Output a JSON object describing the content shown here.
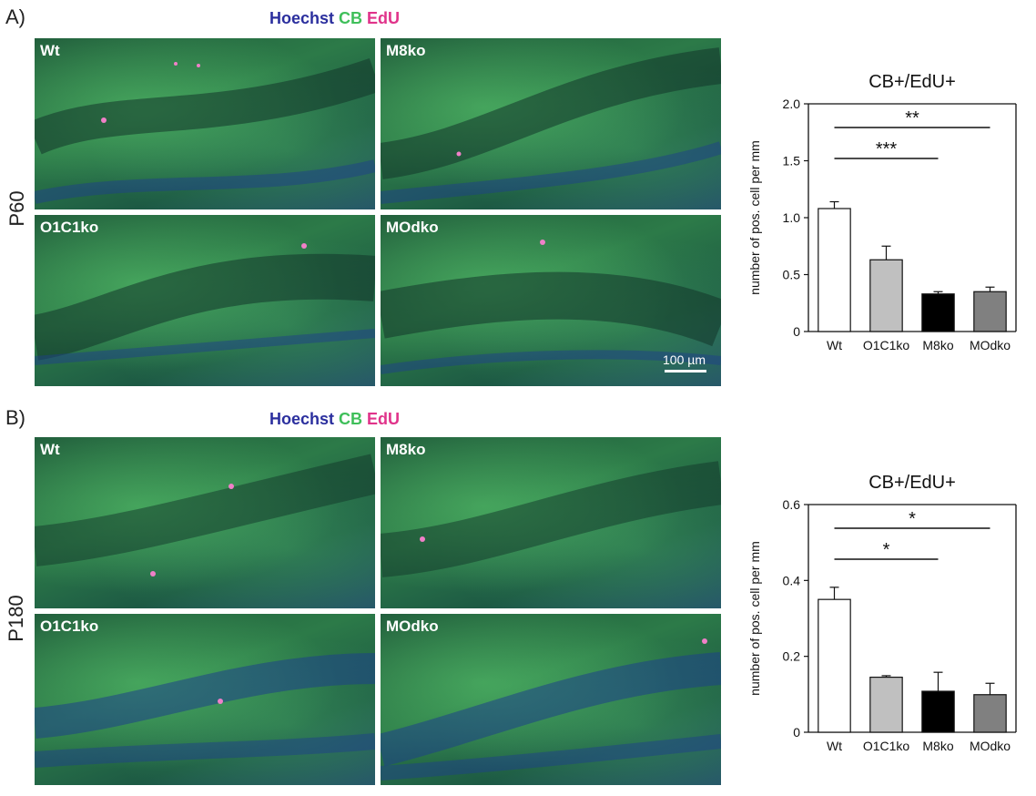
{
  "panels": [
    {
      "letter": "A)",
      "stain": {
        "hoechst": "Hoechst",
        "cb": "CB",
        "edu": "EdU"
      },
      "age": "P60",
      "images": [
        {
          "label": "Wt"
        },
        {
          "label": "M8ko"
        },
        {
          "label": "O1C1ko"
        },
        {
          "label": "MOdko"
        }
      ],
      "scale_bar": "100 µm"
    },
    {
      "letter": "B)",
      "stain": {
        "hoechst": "Hoechst",
        "cb": "CB",
        "edu": "EdU"
      },
      "age": "P180",
      "images": [
        {
          "label": "Wt"
        },
        {
          "label": "M8ko"
        },
        {
          "label": "O1C1ko"
        },
        {
          "label": "MOdko"
        }
      ]
    }
  ],
  "chart_data": [
    {
      "type": "bar",
      "title": "CB+/EdU+",
      "ylabel": "number of pos. cell per mm",
      "categories": [
        "Wt",
        "O1C1ko",
        "M8ko",
        "MOdko"
      ],
      "values": [
        1.08,
        0.63,
        0.33,
        0.35
      ],
      "errors": [
        0.06,
        0.12,
        0.02,
        0.04
      ],
      "colors": [
        "#ffffff",
        "#c0c0c0",
        "#000000",
        "#808080"
      ],
      "ylim": [
        0,
        2.0
      ],
      "yticks": [
        "0",
        "0.5",
        "1.0",
        "1.5",
        "2.0"
      ],
      "ytick_values": [
        0,
        0.5,
        1.0,
        1.5,
        2.0
      ],
      "significance": [
        {
          "from": 0,
          "to": 2,
          "label": "***"
        },
        {
          "from": 0,
          "to": 3,
          "label": "**"
        }
      ]
    },
    {
      "type": "bar",
      "title": "CB+/EdU+",
      "ylabel": "number of pos. cell per mm",
      "categories": [
        "Wt",
        "O1C1ko",
        "M8ko",
        "MOdko"
      ],
      "values": [
        0.35,
        0.145,
        0.108,
        0.099
      ],
      "errors": [
        0.032,
        0.004,
        0.05,
        0.03
      ],
      "colors": [
        "#ffffff",
        "#c0c0c0",
        "#000000",
        "#808080"
      ],
      "ylim": [
        0,
        0.6
      ],
      "yticks": [
        "0",
        "0.2",
        "0.4",
        "0.6"
      ],
      "ytick_values": [
        0,
        0.2,
        0.4,
        0.6
      ],
      "significance": [
        {
          "from": 0,
          "to": 2,
          "label": "*"
        },
        {
          "from": 0,
          "to": 3,
          "label": "*"
        }
      ]
    }
  ]
}
